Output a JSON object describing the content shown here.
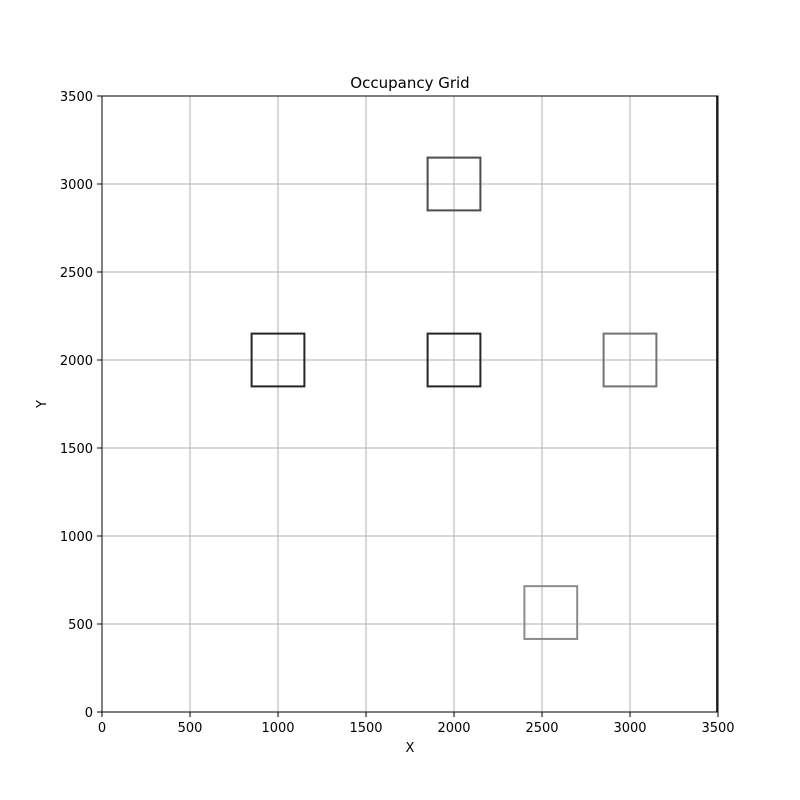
{
  "chart_data": {
    "type": "heatmap",
    "title": "Occupancy Grid",
    "xlabel": "X",
    "ylabel": "Y",
    "xlim": [
      0,
      3500
    ],
    "ylim": [
      0,
      3500
    ],
    "xticks": [
      0,
      500,
      1000,
      1500,
      2000,
      2500,
      3000,
      3500
    ],
    "yticks": [
      0,
      500,
      1000,
      1500,
      2000,
      2500,
      3000,
      3500
    ],
    "grid": true,
    "colormap": "gray_r",
    "occupied_squares": [
      {
        "x0": 850,
        "x1": 1150,
        "y0": 1850,
        "y1": 2150,
        "intensity": 0.85
      },
      {
        "x0": 1850,
        "x1": 2150,
        "y0": 1850,
        "y1": 2150,
        "intensity": 0.85
      },
      {
        "x0": 2850,
        "x1": 3150,
        "y0": 1850,
        "y1": 2150,
        "intensity": 0.55
      },
      {
        "x0": 1850,
        "x1": 2150,
        "y0": 2850,
        "y1": 3150,
        "intensity": 0.7
      },
      {
        "x0": 2400,
        "x1": 2700,
        "y0": 415,
        "y1": 715,
        "intensity": 0.45
      }
    ],
    "boundary_wall": {
      "x": 3500,
      "y0": 0,
      "y1": 3500,
      "intensity": 0.8
    }
  }
}
